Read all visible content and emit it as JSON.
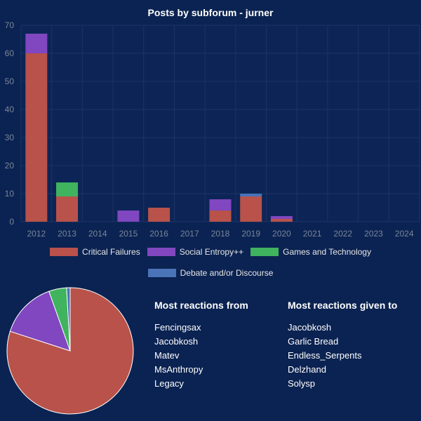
{
  "colors": {
    "background": "#0b2352",
    "plot_bg": "#0d2556",
    "grid": "#1b3566",
    "tick": "#7a8599",
    "critical_failures": "#b8524a",
    "social_entropy": "#8047c0",
    "games_tech": "#3fb35e",
    "debate": "#4a73b8"
  },
  "chart_data": [
    {
      "type": "bar",
      "stacked": true,
      "title": "Posts by subforum - jurner",
      "categories": [
        "2012",
        "2013",
        "2014",
        "2015",
        "2016",
        "2017",
        "2018",
        "2019",
        "2020",
        "2021",
        "2022",
        "2023",
        "2024"
      ],
      "series": [
        {
          "name": "Critical Failures",
          "color": "#b8524a",
          "values": [
            60,
            9,
            0,
            0,
            5,
            0,
            4,
            9,
            1,
            0,
            0,
            0,
            0
          ]
        },
        {
          "name": "Social Entropy++",
          "color": "#8047c0",
          "values": [
            7,
            0,
            0,
            4,
            0,
            0,
            4,
            0,
            1,
            0,
            0,
            0,
            0
          ]
        },
        {
          "name": "Games and Technology",
          "color": "#3fb35e",
          "values": [
            0,
            5,
            0,
            0,
            0,
            0,
            0,
            0,
            0,
            0,
            0,
            0,
            0
          ]
        },
        {
          "name": "Debate and/or Discourse",
          "color": "#4a73b8",
          "values": [
            0,
            0,
            0,
            0,
            0,
            0,
            0,
            1,
            0,
            0,
            0,
            0,
            0
          ]
        }
      ],
      "ylim": [
        0,
        70
      ],
      "yticks": [
        0,
        10,
        20,
        30,
        40,
        50,
        60,
        70
      ],
      "xlabel": "",
      "ylabel": "",
      "legend": "bottom"
    },
    {
      "type": "pie",
      "labels": [
        "Critical Failures",
        "Social Entropy++",
        "Games and Technology",
        "Debate and/or Discourse"
      ],
      "values": [
        88,
        16,
        5,
        1
      ],
      "colors": [
        "#b8524a",
        "#8047c0",
        "#3fb35e",
        "#4a73b8"
      ]
    }
  ],
  "legend_items": [
    {
      "label": "Critical Failures",
      "color": "#b8524a"
    },
    {
      "label": "Social Entropy++",
      "color": "#8047c0"
    },
    {
      "label": "Games and Technology",
      "color": "#3fb35e"
    },
    {
      "label": "Debate and/or Discourse",
      "color": "#4a73b8"
    }
  ],
  "reactions_from": {
    "heading": "Most reactions from",
    "names": [
      "Fencingsax",
      "Jacobkosh",
      "Matev",
      "MsAnthropy",
      "Legacy"
    ]
  },
  "reactions_to": {
    "heading": "Most reactions given to",
    "names": [
      "Jacobkosh",
      "Garlic Bread",
      "Endless_Serpents",
      "Delzhand",
      "Solysp"
    ]
  }
}
